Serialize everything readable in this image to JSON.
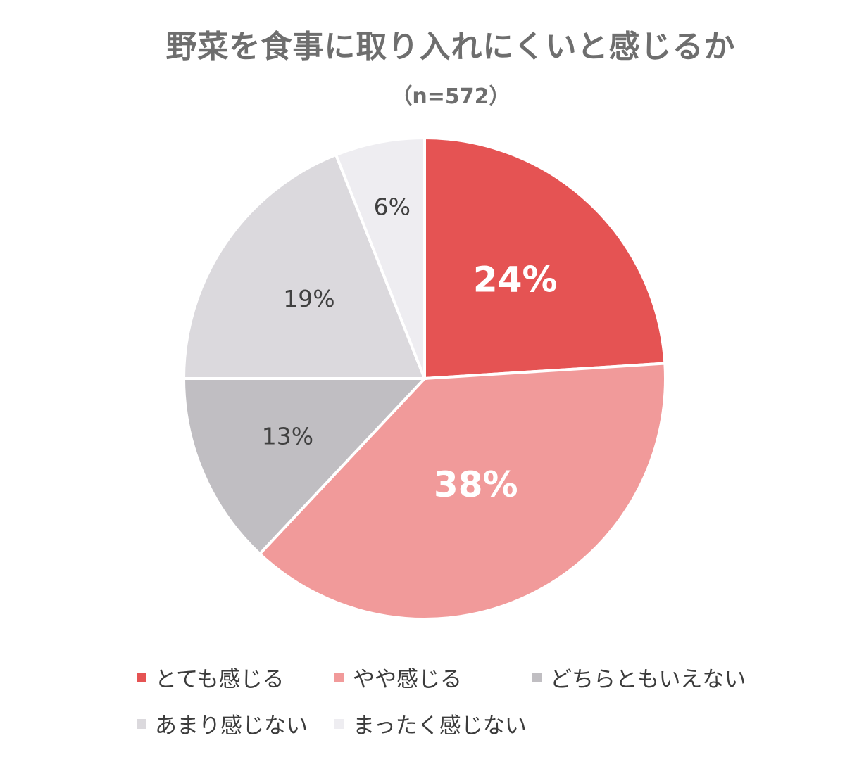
{
  "chart_data": {
    "type": "pie",
    "title": "野菜を食事に取り入れにくいと感じるか",
    "subtitle": "（n=572）",
    "categories": [
      "とても感じる",
      "やや感じる",
      "どちらともいえない",
      "あまり感じない",
      "まったく感じない"
    ],
    "values": [
      24,
      38,
      13,
      19,
      6
    ],
    "labels": [
      "24%",
      "38%",
      "13%",
      "19%",
      "6%"
    ],
    "colors": [
      "#e55353",
      "#f19a9a",
      "#c0bec2",
      "#dbd9dd",
      "#eeedf1"
    ],
    "label_colors": [
      "#ffffff",
      "#ffffff",
      "#404040",
      "#404040",
      "#404040"
    ],
    "legend_position": "bottom"
  }
}
